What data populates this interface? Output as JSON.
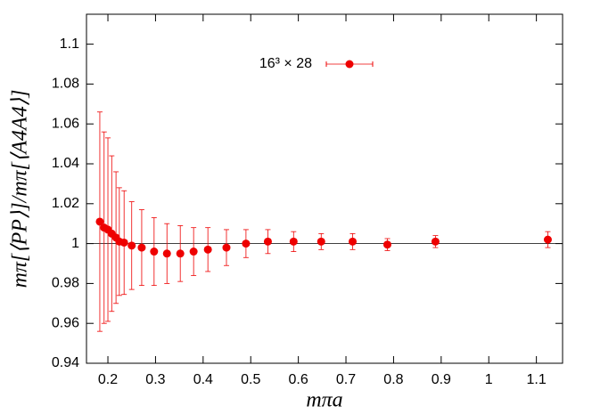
{
  "chart_data": {
    "type": "scatter",
    "x_label": "mπa",
    "y_label": "mπ[⟨PP⟩]/mπ[⟨A4A4⟩]",
    "xlim": [
      0.155,
      1.155
    ],
    "xticks": [
      0.2,
      0.3,
      0.4,
      0.5,
      0.6,
      0.7,
      0.8,
      0.9,
      1,
      1.1
    ],
    "ylim": [
      0.94,
      1.115
    ],
    "yticks": [
      0.94,
      0.96,
      0.98,
      1,
      1.02,
      1.04,
      1.06,
      1.08,
      1.1
    ],
    "hline": 1,
    "series": [
      {
        "name": "16³ × 28",
        "color": "#ee0000",
        "x": [
          0.183,
          0.192,
          0.2,
          0.208,
          0.217,
          0.224,
          0.234,
          0.25,
          0.271,
          0.297,
          0.324,
          0.352,
          0.38,
          0.41,
          0.449,
          0.49,
          0.536,
          0.59,
          0.648,
          0.714,
          0.787,
          0.888,
          1.124
        ],
        "values": [
          1.011,
          1.008,
          1.007,
          1.005,
          1.003,
          1.001,
          1.0005,
          0.999,
          0.998,
          0.996,
          0.995,
          0.995,
          0.996,
          0.997,
          0.998,
          1.0,
          1.001,
          1.001,
          1.001,
          1.001,
          0.9995,
          1.001,
          1.002
        ],
        "errors": [
          0.055,
          0.048,
          0.046,
          0.039,
          0.033,
          0.027,
          0.026,
          0.022,
          0.019,
          0.017,
          0.015,
          0.014,
          0.012,
          0.011,
          0.009,
          0.007,
          0.006,
          0.005,
          0.004,
          0.004,
          0.003,
          0.003,
          0.004
        ]
      }
    ]
  }
}
